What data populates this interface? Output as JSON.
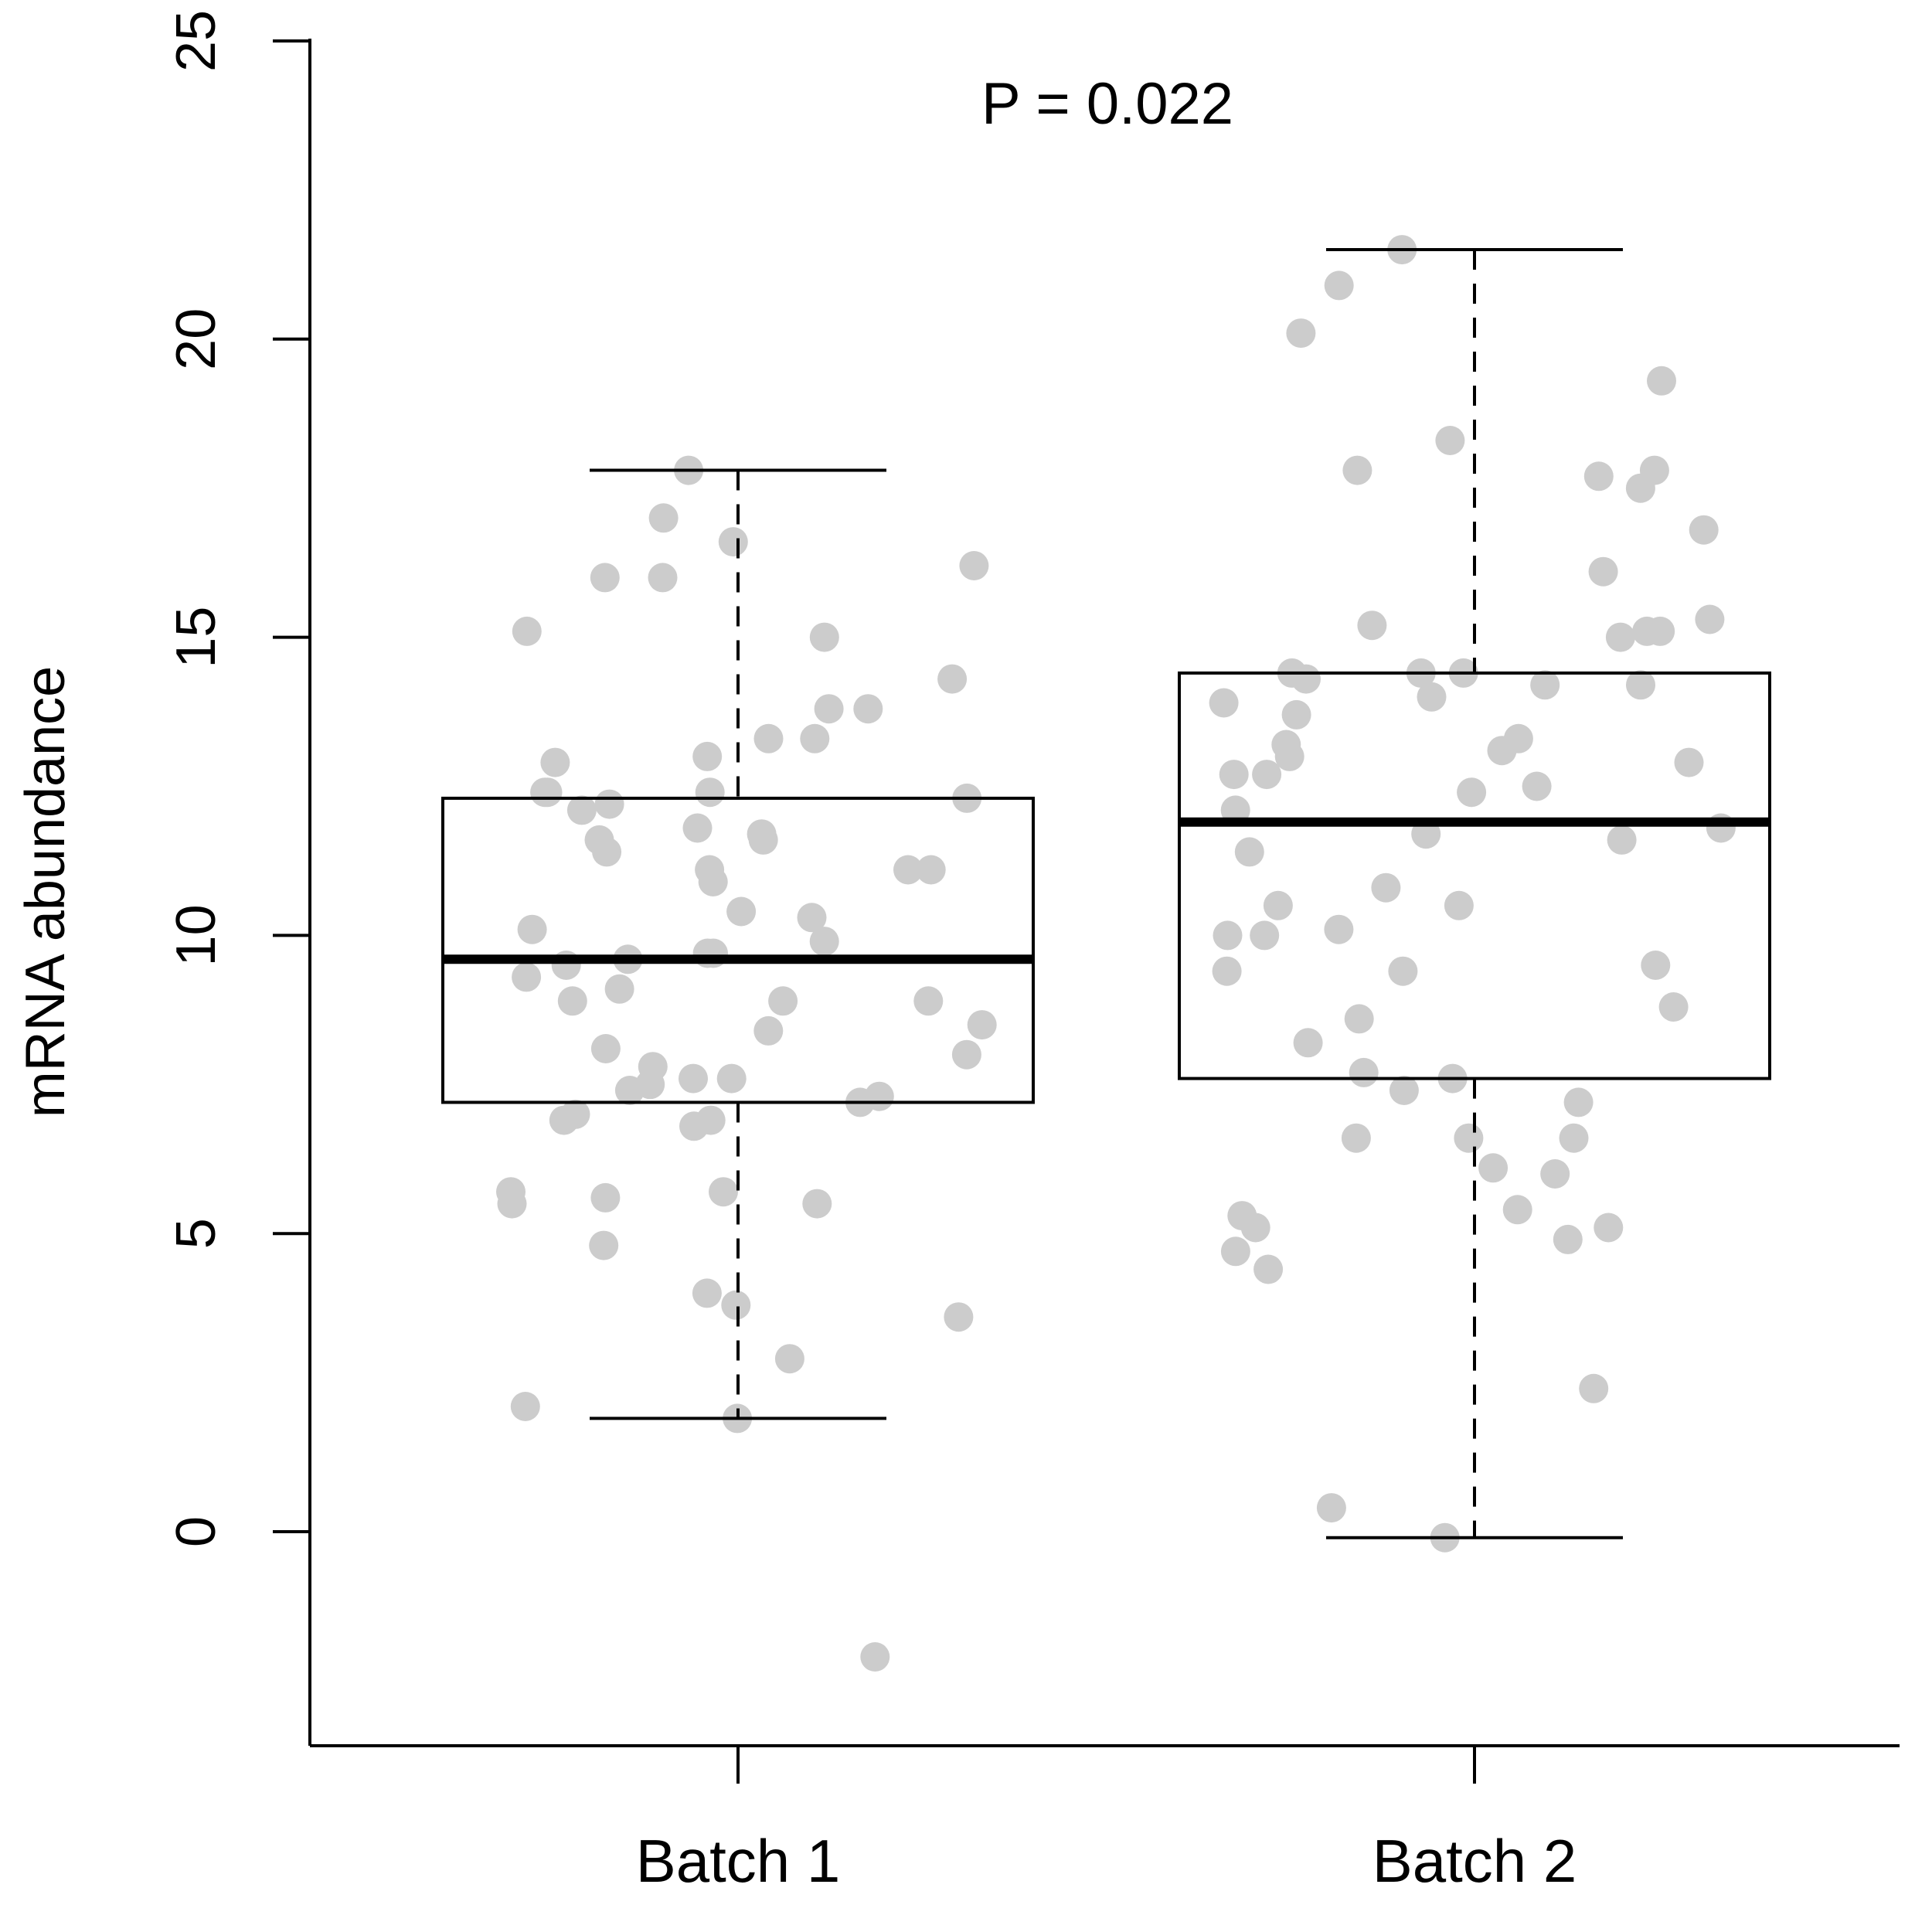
{
  "chart_data": {
    "type": "box",
    "title": "",
    "annotation": "P = 0.022",
    "ylabel": "mRNA abundance",
    "xlabel": "",
    "ylim": [
      -3.5,
      25
    ],
    "yticks": [
      0,
      5,
      10,
      15,
      20,
      25
    ],
    "y_tick_labels": [
      "0",
      "5",
      "10",
      "15",
      "20",
      "25"
    ],
    "categories": [
      "Batch 1",
      "Batch 2"
    ],
    "point_color": "#cccccc",
    "grid": false,
    "legend": "none",
    "boxes": [
      {
        "category": "Batch 1",
        "whisker_low": 1.9,
        "q1": 7.2,
        "median": 9.6,
        "q3": 12.3,
        "whisker_high": 17.8
      },
      {
        "category": "Batch 2",
        "whisker_low": -0.1,
        "q1": 7.6,
        "median": 11.9,
        "q3": 14.4,
        "whisker_high": 21.5
      }
    ],
    "points": [
      {
        "category": "Batch 1",
        "values": [
          16.6,
          13.3,
          12.4,
          12.2,
          11.1,
          10.4,
          9.3,
          8.9,
          8.9,
          7.6,
          7.4,
          7.3,
          5.5,
          2.1,
          1.9,
          16.0,
          15.0,
          9.5,
          8.4,
          7.6,
          7.0,
          5.5,
          3.6,
          16.2,
          12.4,
          12.4,
          12.3,
          12.1,
          11.8,
          11.6,
          9.9,
          9.6,
          8.9,
          8.5,
          6.9,
          4.8,
          11.7,
          7.8,
          6.9,
          -2.1,
          17.0,
          16.0,
          15.1,
          14.3,
          11.4,
          11.1,
          5.7,
          5.6,
          2.9,
          17.8,
          13.8,
          13.3,
          12.9,
          11.6,
          10.9,
          10.1,
          5.7,
          6.8,
          13.8,
          10.3,
          8.0,
          7.5,
          4.0,
          3.8,
          13.0,
          11.1,
          9.7,
          9.7,
          9.1,
          8.1,
          7.2
        ]
      },
      {
        "category": "Batch 2",
        "values": [
          13.0,
          8.6,
          5.1,
          17.8,
          15.3,
          12.9,
          9.5,
          17.7,
          14.2,
          13.1,
          12.1,
          10.8,
          9.4,
          0.4,
          14.4,
          4.9,
          2.4,
          17.8,
          16.8,
          9.4,
          7.4,
          5.4,
          -0.1,
          4.4,
          11.8,
          7.6,
          19.3,
          13.3,
          10.5,
          13.2,
          11.6,
          8.8,
          6.6,
          4.7,
          20.1,
          7.2,
          6.6,
          6.0,
          15.1,
          10.1,
          17.5,
          8.2,
          5.3,
          10.0,
          12.7,
          6.1,
          14.2,
          15.1,
          13.7,
          12.4,
          11.4,
          7.7,
          6.6,
          5.1,
          21.5,
          20.9,
          15.2,
          15.0,
          14.4,
          14.3,
          13.9,
          12.5,
          12.7,
          11.7,
          10.5,
          14.4,
          14.0,
          10.0,
          16.1,
          18.3
        ]
      }
    ]
  }
}
